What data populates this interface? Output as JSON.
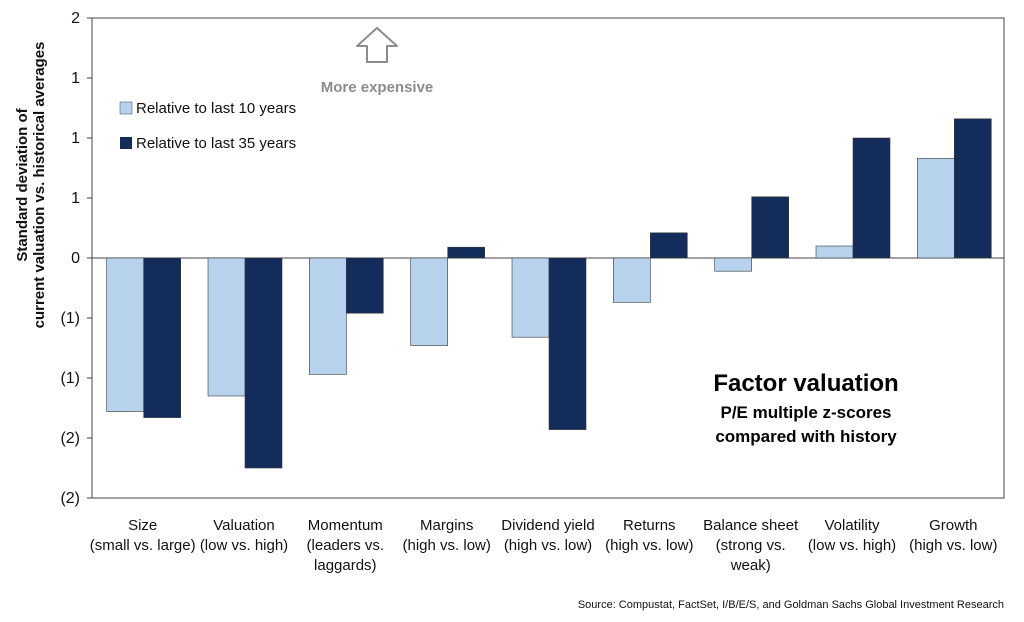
{
  "chart_data": {
    "type": "bar",
    "title": "Factor valuation",
    "subtitle_lines": [
      "P/E multiple z-scores",
      "compared with history"
    ],
    "ylabel_lines": [
      "Standard deviation of",
      "current valuation vs. historical averages"
    ],
    "ylim": [
      -2.0,
      2.0
    ],
    "yticks": [
      2.0,
      1.5,
      1.0,
      0.5,
      0.0,
      -0.5,
      -1.0,
      -1.5,
      -2.0
    ],
    "ytick_labels": [
      "2",
      "1",
      "1",
      "1",
      "0",
      "(1)",
      "(1)",
      "(2)",
      "(2)"
    ],
    "grid": false,
    "legend_position": "top-left",
    "categories": [
      [
        "Size",
        "(small vs. large)"
      ],
      [
        "Valuation",
        "(low vs. high)"
      ],
      [
        "Momentum",
        "(leaders vs.",
        "laggards)"
      ],
      [
        "Margins",
        "(high vs. low)"
      ],
      [
        "Dividend yield",
        "(high vs. low)"
      ],
      [
        "Returns",
        "(high vs. low)"
      ],
      [
        "Balance sheet",
        "(strong vs.",
        "weak)"
      ],
      [
        "Volatility",
        "(low vs. high)"
      ],
      [
        "Growth",
        "(high vs. low)"
      ]
    ],
    "series": [
      {
        "name": "Relative to last 10 years",
        "color": "#b6d2ec",
        "values": [
          -1.28,
          -1.15,
          -0.97,
          -0.73,
          -0.66,
          -0.37,
          -0.11,
          0.1,
          0.83
        ]
      },
      {
        "name": "Relative to last 35 years",
        "color": "#132c5a",
        "values": [
          -1.33,
          -1.75,
          -0.46,
          0.09,
          -1.43,
          0.21,
          0.51,
          1.0,
          1.16
        ]
      }
    ],
    "annotation": "More expensive",
    "source": "Source: Compustat, FactSet, I/B/E/S, and Goldman Sachs Global Investment Research"
  }
}
